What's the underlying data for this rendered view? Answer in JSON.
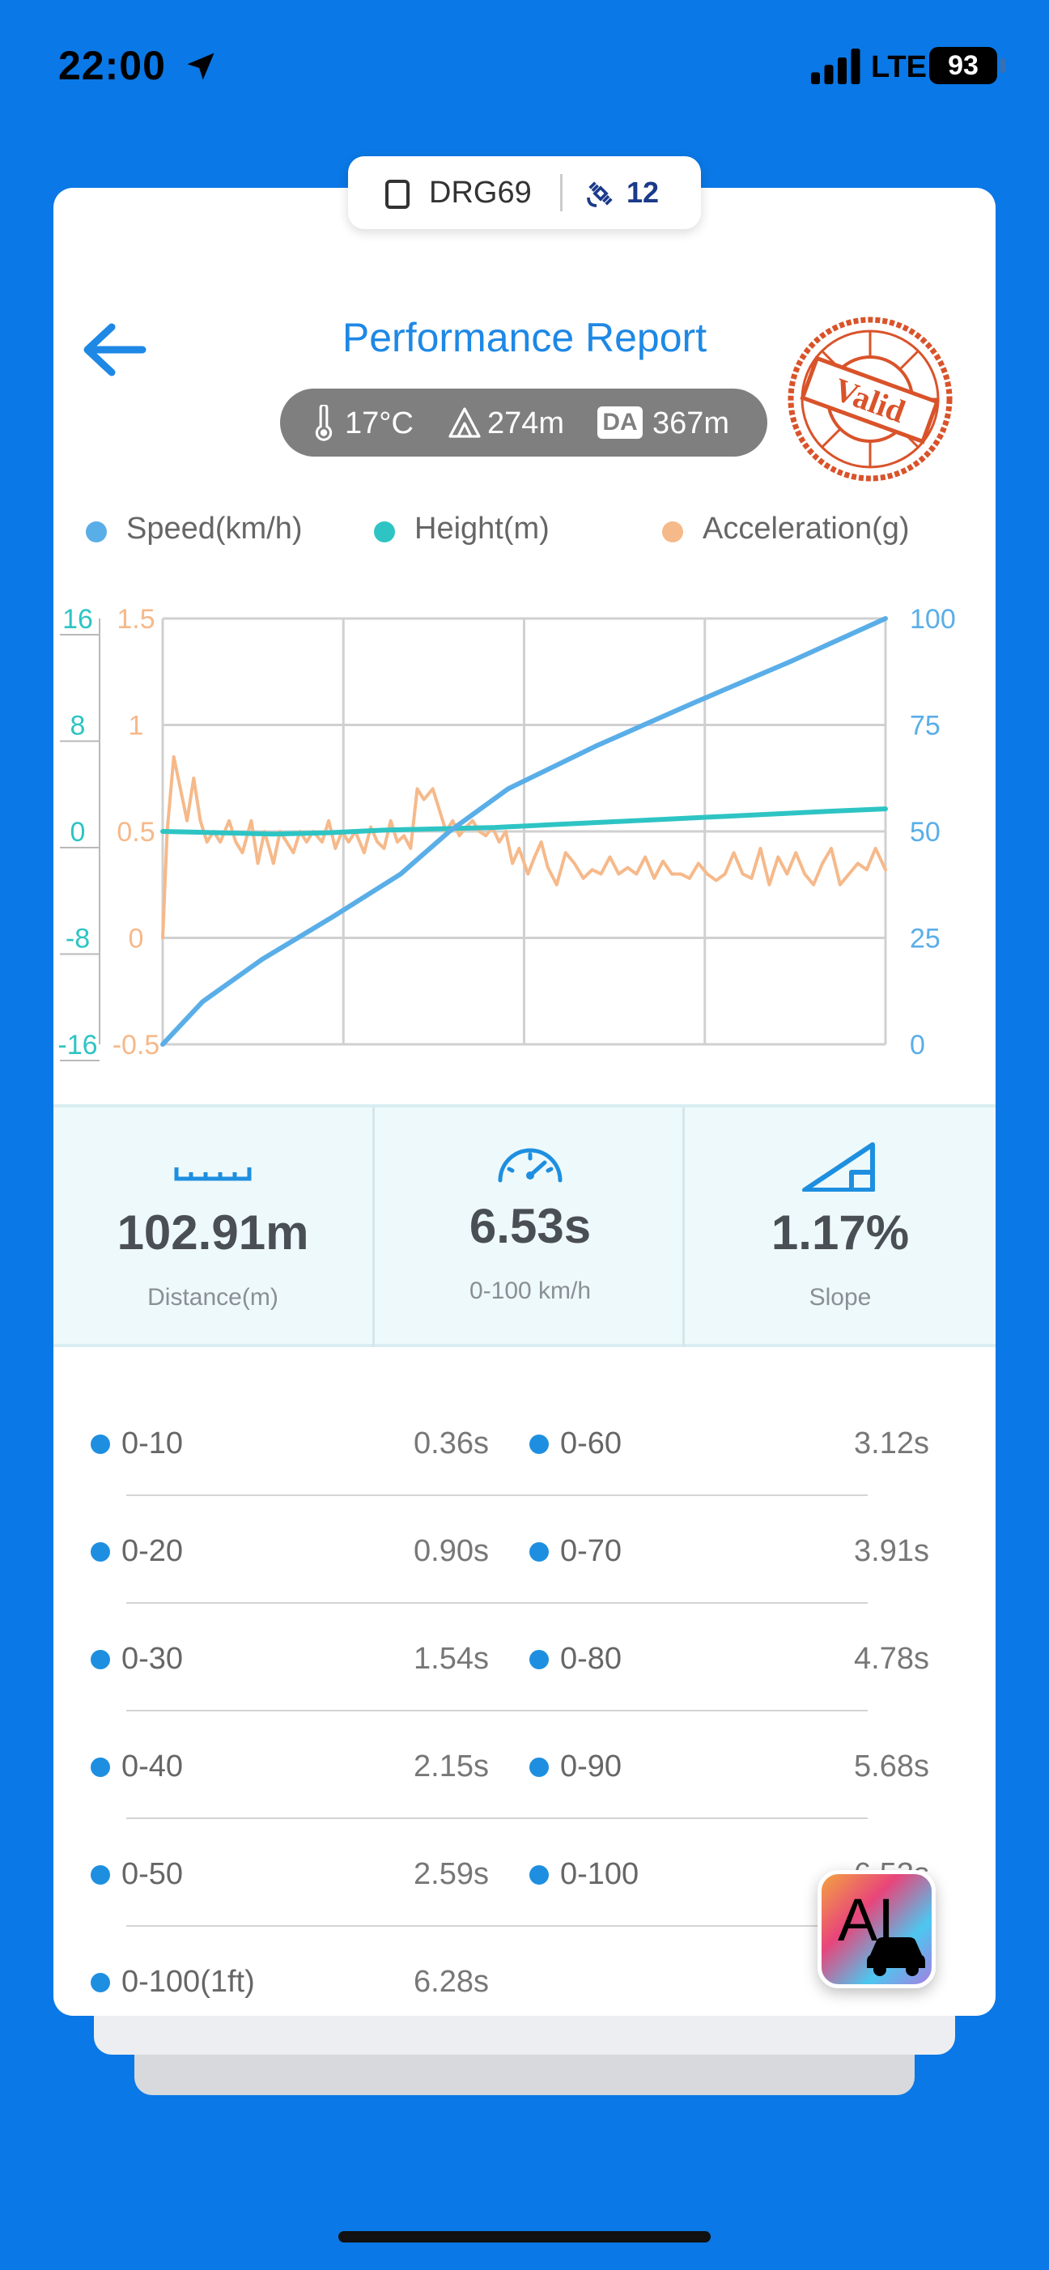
{
  "status_bar": {
    "time": "22:00",
    "network": "LTE",
    "battery": "93"
  },
  "device": {
    "name": "DRG69",
    "satellites": "12"
  },
  "header": {
    "title": "Performance Report",
    "stamp_text": "Valid"
  },
  "conditions": {
    "temperature": "17°C",
    "altitude": "274m",
    "da_badge": "DA",
    "density_altitude": "367m"
  },
  "legend": [
    {
      "label": "Speed(km/h)",
      "color": "#5aaee8"
    },
    {
      "label": "Height(m)",
      "color": "#2ec4c4"
    },
    {
      "label": "Acceleration(g)",
      "color": "#f6b98a"
    }
  ],
  "chart_data": {
    "type": "line",
    "grid": true,
    "axes": {
      "height_left": {
        "ticks": [
          "16",
          "8",
          "0",
          "-8",
          "-16"
        ],
        "range": [
          -16,
          16
        ],
        "color": "#2ec4c4"
      },
      "accel_left": {
        "ticks": [
          "1.5",
          "1",
          "0.5",
          "0",
          "-0.5"
        ],
        "range": [
          -0.5,
          1.5
        ],
        "color": "#f6b98a"
      },
      "speed_right": {
        "ticks": [
          "100",
          "75",
          "50",
          "25",
          "0"
        ],
        "range": [
          0,
          100
        ],
        "color": "#5aaee8"
      }
    },
    "x_range": [
      0,
      6.53
    ],
    "series": [
      {
        "name": "Speed(km/h)",
        "axis": "speed_right",
        "color": "#5aaee8",
        "x": [
          0,
          0.36,
          0.9,
          1.54,
          2.15,
          2.59,
          3.12,
          3.91,
          4.78,
          5.68,
          6.53
        ],
        "y": [
          0,
          10,
          20,
          30,
          40,
          50,
          60,
          70,
          80,
          90,
          100
        ]
      },
      {
        "name": "Height(m)",
        "axis": "height_left",
        "color": "#2ec4c4",
        "x": [
          0,
          0.5,
          1,
          1.5,
          2,
          2.5,
          3,
          3.5,
          4,
          4.5,
          5,
          5.5,
          6,
          6.53
        ],
        "y": [
          0,
          -0.1,
          -0.2,
          -0.1,
          0.1,
          0.2,
          0.3,
          0.5,
          0.7,
          0.9,
          1.1,
          1.3,
          1.5,
          1.7
        ]
      },
      {
        "name": "Acceleration(g)",
        "axis": "accel_left",
        "color": "#f6b98a",
        "x": [
          0,
          0.04,
          0.1,
          0.16,
          0.22,
          0.28,
          0.34,
          0.4,
          0.46,
          0.52,
          0.6,
          0.66,
          0.72,
          0.8,
          0.86,
          0.92,
          1.0,
          1.06,
          1.12,
          1.18,
          1.24,
          1.3,
          1.36,
          1.44,
          1.5,
          1.56,
          1.62,
          1.68,
          1.74,
          1.82,
          1.88,
          1.94,
          2.0,
          2.06,
          2.12,
          2.18,
          2.24,
          2.3,
          2.36,
          2.44,
          2.5,
          2.56,
          2.62,
          2.68,
          2.74,
          2.8,
          2.86,
          2.92,
          2.98,
          3.04,
          3.1,
          3.16,
          3.22,
          3.3,
          3.36,
          3.42,
          3.48,
          3.56,
          3.64,
          3.72,
          3.8,
          3.88,
          3.96,
          4.04,
          4.12,
          4.2,
          4.28,
          4.36,
          4.44,
          4.52,
          4.6,
          4.68,
          4.76,
          4.84,
          4.92,
          5.0,
          5.08,
          5.16,
          5.24,
          5.32,
          5.4,
          5.48,
          5.56,
          5.64,
          5.72,
          5.8,
          5.88,
          5.96,
          6.04,
          6.12,
          6.2,
          6.28,
          6.36,
          6.44,
          6.53
        ],
        "y": [
          0,
          0.5,
          0.85,
          0.7,
          0.55,
          0.75,
          0.55,
          0.45,
          0.5,
          0.45,
          0.55,
          0.45,
          0.4,
          0.55,
          0.35,
          0.5,
          0.35,
          0.5,
          0.45,
          0.4,
          0.5,
          0.45,
          0.5,
          0.45,
          0.55,
          0.42,
          0.5,
          0.45,
          0.5,
          0.4,
          0.52,
          0.45,
          0.42,
          0.55,
          0.45,
          0.48,
          0.42,
          0.7,
          0.65,
          0.7,
          0.6,
          0.5,
          0.55,
          0.48,
          0.52,
          0.55,
          0.5,
          0.48,
          0.52,
          0.45,
          0.5,
          0.35,
          0.42,
          0.3,
          0.38,
          0.45,
          0.33,
          0.25,
          0.4,
          0.35,
          0.28,
          0.32,
          0.3,
          0.38,
          0.3,
          0.33,
          0.3,
          0.38,
          0.28,
          0.36,
          0.3,
          0.3,
          0.28,
          0.35,
          0.3,
          0.27,
          0.3,
          0.4,
          0.3,
          0.28,
          0.42,
          0.25,
          0.38,
          0.3,
          0.4,
          0.3,
          0.25,
          0.35,
          0.42,
          0.25,
          0.3,
          0.35,
          0.32,
          0.42,
          0.32
        ]
      }
    ]
  },
  "metrics": [
    {
      "value": "102.91m",
      "label": "Distance(m)",
      "icon": "ruler-icon"
    },
    {
      "value": "6.53s",
      "label": "0-100 km/h",
      "icon": "speedometer-icon"
    },
    {
      "value": "1.17%",
      "label": "Slope",
      "icon": "slope-icon"
    }
  ],
  "splits_left": [
    {
      "label": "0-10",
      "time": "0.36s"
    },
    {
      "label": "0-20",
      "time": "0.90s"
    },
    {
      "label": "0-30",
      "time": "1.54s"
    },
    {
      "label": "0-40",
      "time": "2.15s"
    },
    {
      "label": "0-50",
      "time": "2.59s"
    },
    {
      "label": "0-100(1ft)",
      "time": "6.28s"
    }
  ],
  "splits_right": [
    {
      "label": "0-60",
      "time": "3.12s"
    },
    {
      "label": "0-70",
      "time": "3.91s"
    },
    {
      "label": "0-80",
      "time": "4.78s"
    },
    {
      "label": "0-90",
      "time": "5.68s"
    },
    {
      "label": "0-100",
      "time": "6.53s"
    }
  ],
  "ai_button": {
    "label": "AI"
  }
}
